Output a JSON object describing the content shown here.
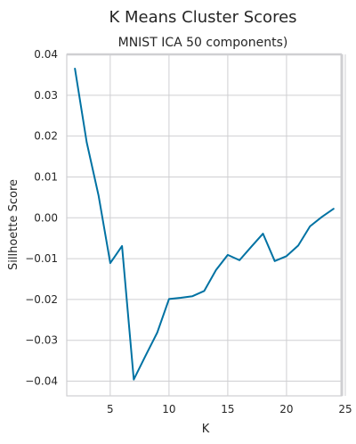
{
  "chart_data": {
    "type": "line",
    "title": "K Means Cluster Scores",
    "subtitle": "MNIST ICA 50 components)",
    "xlabel": "K",
    "ylabel": "Sillhoette Score",
    "xlim": [
      1.3,
      24.7
    ],
    "ylim": [
      -0.0436,
      0.04
    ],
    "xticks": [
      5,
      10,
      15,
      20,
      25
    ],
    "xtick_labels": [
      "5",
      "10",
      "15",
      "20",
      "25"
    ],
    "yticks": [
      0.04,
      0.03,
      0.02,
      0.01,
      0.0,
      -0.01,
      -0.02,
      -0.03,
      -0.04
    ],
    "ytick_labels": [
      "0.04",
      "0.03",
      "0.02",
      "0.01",
      "0.00",
      "−0.01",
      "−0.02",
      "−0.03",
      "−0.04"
    ],
    "grid": true,
    "series": [
      {
        "color": "#0072a3",
        "x": [
          2,
          3,
          4,
          5,
          6,
          7,
          8,
          9,
          10,
          11,
          12,
          13,
          14,
          15,
          16,
          17,
          18,
          19,
          20,
          21,
          22,
          23,
          24
        ],
        "values": [
          0.0365,
          0.0185,
          0.0055,
          -0.0111,
          -0.0069,
          -0.0396,
          -0.0338,
          -0.0281,
          -0.0199,
          -0.0196,
          -0.0192,
          -0.0179,
          -0.0128,
          -0.0091,
          -0.0104,
          -0.0071,
          -0.0039,
          -0.0106,
          -0.0094,
          -0.0068,
          -0.0021,
          0.0002,
          0.0022
        ]
      }
    ]
  }
}
